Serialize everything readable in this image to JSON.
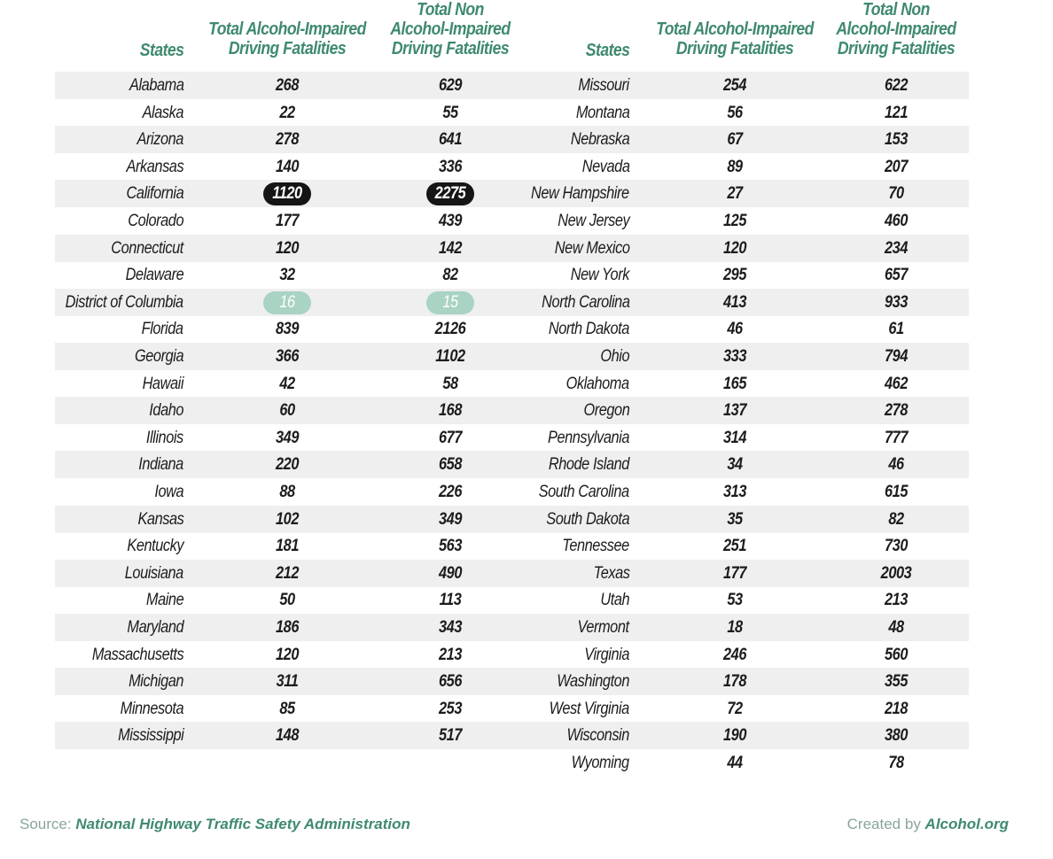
{
  "chart_data": {
    "type": "table",
    "columns": [
      "States",
      "Total Alcohol-Impaired Driving Fatalities",
      "Total Non Alcohol-Impaired Driving Fatalities"
    ],
    "header_lines": {
      "state": [
        "States"
      ],
      "alcohol": [
        "Total Alcohol-Impaired",
        "Driving Fatalities"
      ],
      "non_alcohol": [
        "Total Non",
        "Alcohol-Impaired",
        "Driving Fatalities"
      ]
    },
    "left_rows": [
      [
        "Alabama",
        "268",
        "629"
      ],
      [
        "Alaska",
        "22",
        "55"
      ],
      [
        "Arizona",
        "278",
        "641"
      ],
      [
        "Arkansas",
        "140",
        "336"
      ],
      [
        "California",
        "1120",
        "2275"
      ],
      [
        "Colorado",
        "177",
        "439"
      ],
      [
        "Connecticut",
        "120",
        "142"
      ],
      [
        "Delaware",
        "32",
        "82"
      ],
      [
        "District of Columbia",
        "16",
        "15"
      ],
      [
        "Florida",
        "839",
        "2126"
      ],
      [
        "Georgia",
        "366",
        "1102"
      ],
      [
        "Hawaii",
        "42",
        "58"
      ],
      [
        "Idaho",
        "60",
        "168"
      ],
      [
        "Illinois",
        "349",
        "677"
      ],
      [
        "Indiana",
        "220",
        "658"
      ],
      [
        "Iowa",
        "88",
        "226"
      ],
      [
        "Kansas",
        "102",
        "349"
      ],
      [
        "Kentucky",
        "181",
        "563"
      ],
      [
        "Louisiana",
        "212",
        "490"
      ],
      [
        "Maine",
        "50",
        "113"
      ],
      [
        "Maryland",
        "186",
        "343"
      ],
      [
        "Massachusetts",
        "120",
        "213"
      ],
      [
        "Michigan",
        "311",
        "656"
      ],
      [
        "Minnesota",
        "85",
        "253"
      ],
      [
        "Mississippi",
        "148",
        "517"
      ]
    ],
    "right_rows": [
      [
        "Missouri",
        "254",
        "622"
      ],
      [
        "Montana",
        "56",
        "121"
      ],
      [
        "Nebraska",
        "67",
        "153"
      ],
      [
        "Nevada",
        "89",
        "207"
      ],
      [
        "New Hampshire",
        "27",
        "70"
      ],
      [
        "New Jersey",
        "125",
        "460"
      ],
      [
        "New Mexico",
        "120",
        "234"
      ],
      [
        "New York",
        "295",
        "657"
      ],
      [
        "North Carolina",
        "413",
        "933"
      ],
      [
        "North Dakota",
        "46",
        "61"
      ],
      [
        "Ohio",
        "333",
        "794"
      ],
      [
        "Oklahoma",
        "165",
        "462"
      ],
      [
        "Oregon",
        "137",
        "278"
      ],
      [
        "Pennsylvania",
        "314",
        "777"
      ],
      [
        "Rhode Island",
        "34",
        "46"
      ],
      [
        "South Carolina",
        "313",
        "615"
      ],
      [
        "South Dakota",
        "35",
        "82"
      ],
      [
        "Tennessee",
        "251",
        "730"
      ],
      [
        "Texas",
        "177",
        "2003"
      ],
      [
        "Utah",
        "53",
        "213"
      ],
      [
        "Vermont",
        "18",
        "48"
      ],
      [
        "Virginia",
        "246",
        "560"
      ],
      [
        "Washington",
        "178",
        "355"
      ],
      [
        "West Virginia",
        "72",
        "218"
      ],
      [
        "Wisconsin",
        "190",
        "380"
      ],
      [
        "Wyoming",
        "44",
        "78"
      ]
    ],
    "highlight_max_state": "California",
    "highlight_min_state": "District of Columbia",
    "colors": {
      "header_green": "#3f8a6e",
      "stripe": "#efefef",
      "max_pill": "#151515",
      "min_pill": "#a9d3c3"
    }
  },
  "footer": {
    "source_prefix": "Source: ",
    "source_name": "National Highway Traffic Safety Administration",
    "credit_prefix": "Created by ",
    "credit_name": "Alcohol.org"
  }
}
